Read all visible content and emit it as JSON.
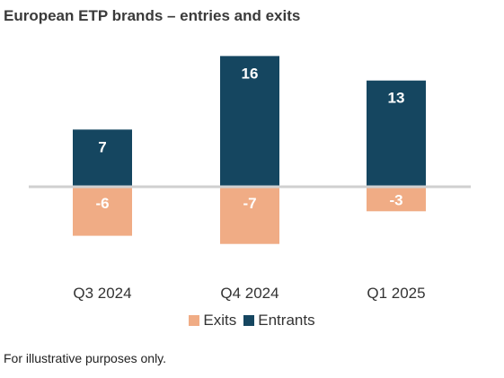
{
  "title": "European ETP brands – entries and exits",
  "footnote": "For illustrative purposes only.",
  "colors": {
    "entrants": "#154660",
    "exits": "#F0AC85",
    "axis": "#d0d0d0"
  },
  "chart_data": {
    "type": "bar",
    "title": "European ETP brands – entries and exits",
    "categories": [
      "Q3 2024",
      "Q4 2024",
      "Q1 2025"
    ],
    "series": [
      {
        "name": "Entrants",
        "values": [
          7,
          16,
          13
        ]
      },
      {
        "name": "Exits",
        "values": [
          -6,
          -7,
          -3
        ]
      }
    ],
    "legend": [
      "Exits",
      "Entrants"
    ],
    "legend_position": "bottom",
    "grid": false,
    "ylim": [
      -8,
      17
    ]
  }
}
